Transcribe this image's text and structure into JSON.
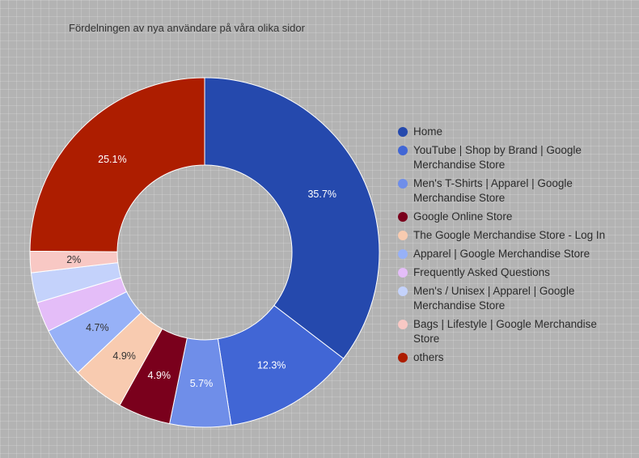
{
  "chart_data": {
    "type": "pie",
    "donut": true,
    "title": "Fördelningen av nya användare på våra olika sidor",
    "legend_position": "right",
    "slices": [
      {
        "label": "Home",
        "value": 35.7,
        "display": "35.7%",
        "color": "#2549ad"
      },
      {
        "label": "YouTube | Shop by Brand | Google Merchandise Store",
        "value": 12.3,
        "display": "12.3%",
        "color": "#4166d5"
      },
      {
        "label": "Men's T-Shirts | Apparel | Google Merchandise Store",
        "value": 5.7,
        "display": "5.7%",
        "color": "#6f8ee9"
      },
      {
        "label": "Google Online Store",
        "value": 4.9,
        "display": "4.9%",
        "color": "#7a001c"
      },
      {
        "label": "The Google Merchandise Store - Log In",
        "value": 4.9,
        "display": "4.9%",
        "color": "#f8cbb0"
      },
      {
        "label": "Apparel | Google Merchandise Store",
        "value": 4.7,
        "display": "4.7%",
        "color": "#97b1f7"
      },
      {
        "label": "Frequently Asked Questions",
        "value": 2.8,
        "display": "",
        "color": "#e4bdf8"
      },
      {
        "label": "Men's / Unisex | Apparel | Google Merchandise Store",
        "value": 2.8,
        "display": "",
        "color": "#c4d2fb"
      },
      {
        "label": "Bags | Lifestyle | Google Merchandise Store",
        "value": 2.0,
        "display": "2%",
        "color": "#f8c8c4"
      },
      {
        "label": "others",
        "value": 25.1,
        "display": "25.1%",
        "color": "#ad1d00"
      }
    ]
  }
}
